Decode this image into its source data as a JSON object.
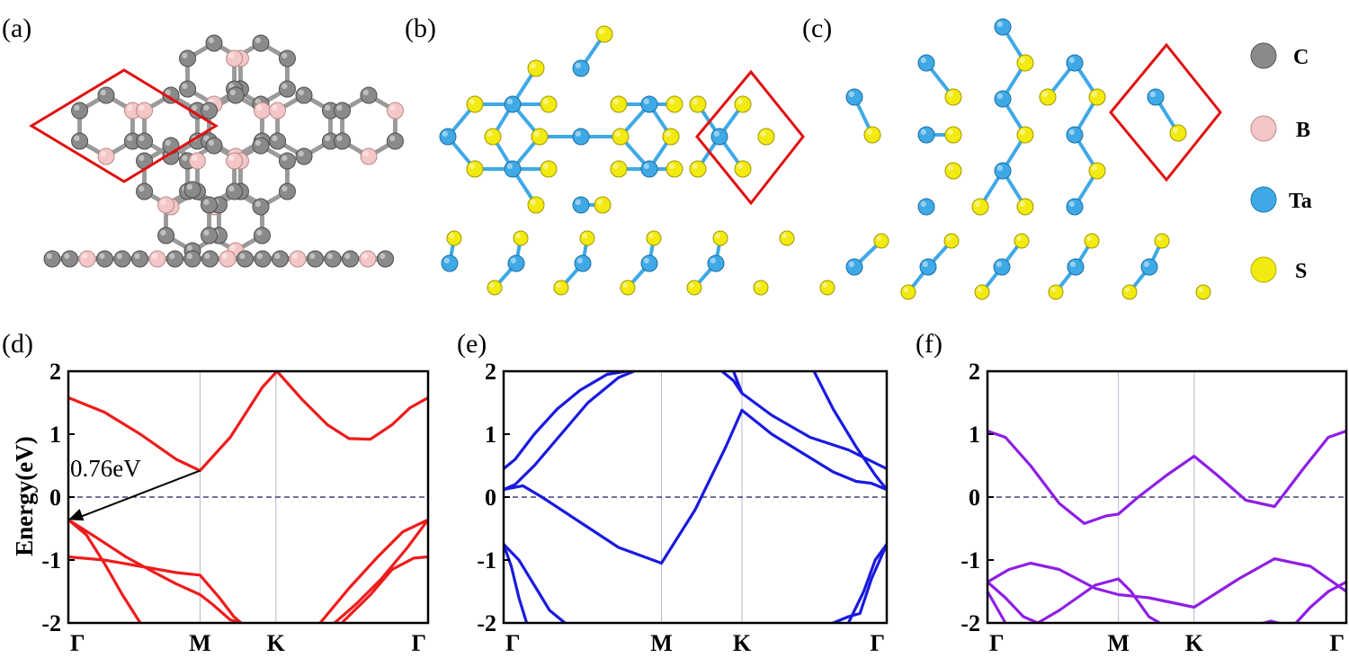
{
  "panel_labels": [
    "(a)",
    "(b)",
    "(c)",
    "(d)",
    "(e)",
    "(f)"
  ],
  "legend": [
    {
      "label": "C",
      "color": "#8a8a8a"
    },
    {
      "label": "B",
      "color": "#f4c6c6"
    },
    {
      "label": "Ta",
      "color": "#3fa9e6"
    },
    {
      "label": "S",
      "color": "#f2ea10"
    }
  ],
  "y_axis_label": "Energy(eV)",
  "annotation": "0.76eV",
  "chart_data": [
    {
      "type": "line",
      "panel": "(d)",
      "ylim": [
        -2,
        2
      ],
      "yticks": [
        "2",
        "1",
        "0",
        "-1",
        "-2"
      ],
      "kpath": [
        "Γ",
        "M",
        "K",
        "Γ"
      ],
      "kpos": [
        0,
        0.366,
        0.577,
        1
      ],
      "fermi_level": 0,
      "band_color": "#ee1c1c",
      "series": [
        {
          "x": [
            0,
            0.1,
            0.2,
            0.3,
            0.366,
            0.45,
            0.54,
            0.58
          ],
          "y": [
            1.58,
            1.35,
            1.0,
            0.6,
            0.42,
            0.95,
            1.75,
            2.0
          ]
        },
        {
          "x": [
            0.58,
            0.65,
            0.72,
            0.78,
            0.84,
            0.9,
            0.95,
            1
          ],
          "y": [
            2.0,
            1.55,
            1.15,
            0.93,
            0.92,
            1.15,
            1.42,
            1.58
          ]
        },
        {
          "x": [
            0,
            0.05,
            0.1,
            0.15,
            0.2
          ],
          "y": [
            -0.36,
            -0.6,
            -1.05,
            -1.55,
            -2.0
          ]
        },
        {
          "x": [
            0,
            0.08,
            0.16,
            0.24,
            0.3,
            0.366,
            0.4,
            0.45,
            0.48
          ],
          "y": [
            -0.36,
            -0.65,
            -0.95,
            -1.2,
            -1.38,
            -1.55,
            -1.7,
            -1.95,
            -2.0
          ]
        },
        {
          "x": [
            0,
            0.1,
            0.2,
            0.3,
            0.366,
            0.42,
            0.46,
            0.48
          ],
          "y": [
            -0.95,
            -1.0,
            -1.1,
            -1.2,
            -1.24,
            -1.6,
            -1.9,
            -2.0
          ]
        },
        {
          "x": [
            0.7,
            0.78,
            0.86,
            0.93,
            1
          ],
          "y": [
            -2.0,
            -1.45,
            -0.95,
            -0.55,
            -0.36
          ]
        },
        {
          "x": [
            0.74,
            0.8,
            0.87,
            0.94,
            1
          ],
          "y": [
            -2.0,
            -1.7,
            -1.3,
            -0.82,
            -0.36
          ]
        },
        {
          "x": [
            0.76,
            0.84,
            0.9,
            0.96,
            1
          ],
          "y": [
            -2.0,
            -1.55,
            -1.15,
            -0.97,
            -0.95
          ]
        }
      ],
      "arrow": {
        "from": [
          0.366,
          0.42
        ],
        "to": [
          0,
          -0.36
        ]
      }
    },
    {
      "type": "line",
      "panel": "(e)",
      "ylim": [
        -2,
        2
      ],
      "yticks": [
        "2",
        "1",
        "0",
        "-1",
        "-2"
      ],
      "kpath": [
        "Γ",
        "M",
        "K",
        "Γ"
      ],
      "kpos": [
        0,
        0.412,
        0.622,
        1
      ],
      "fermi_level": 0,
      "band_color": "#1a1adf",
      "series": [
        {
          "x": [
            0,
            0.03,
            0.08,
            0.15,
            0.22,
            0.3,
            0.34
          ],
          "y": [
            0.12,
            0.2,
            0.5,
            1.0,
            1.5,
            1.9,
            2.0
          ]
        },
        {
          "x": [
            0,
            0.03,
            0.08,
            0.14,
            0.2,
            0.27,
            0.32
          ],
          "y": [
            0.45,
            0.6,
            1.0,
            1.4,
            1.7,
            1.95,
            2.0
          ]
        },
        {
          "x": [
            0,
            0.05,
            0.1,
            0.2,
            0.3,
            0.412,
            0.5,
            0.58,
            0.622
          ],
          "y": [
            0.12,
            0.18,
            0.0,
            -0.4,
            -0.8,
            -1.05,
            -0.2,
            0.8,
            1.38
          ]
        },
        {
          "x": [
            0.622,
            0.7,
            0.78,
            0.86,
            0.92,
            0.96,
            1
          ],
          "y": [
            1.38,
            1.0,
            0.7,
            0.4,
            0.25,
            0.22,
            0.12
          ]
        },
        {
          "x": [
            0.6,
            0.622,
            0.7,
            0.8,
            0.9,
            0.95,
            1
          ],
          "y": [
            2.0,
            1.65,
            1.3,
            0.95,
            0.75,
            0.6,
            0.45
          ]
        },
        {
          "x": [
            0.57,
            0.6,
            0.622
          ],
          "y": [
            2.0,
            1.85,
            1.65
          ]
        },
        {
          "x": [
            0.81,
            0.86,
            0.92,
            0.97,
            1
          ],
          "y": [
            2.0,
            1.4,
            0.8,
            0.35,
            0.12
          ]
        },
        {
          "x": [
            0,
            0.02,
            0.04,
            0.06
          ],
          "y": [
            -0.75,
            -1.1,
            -1.6,
            -2.0
          ]
        },
        {
          "x": [
            0,
            0.04,
            0.08,
            0.12,
            0.16
          ],
          "y": [
            -0.75,
            -1.0,
            -1.4,
            -1.8,
            -2.0
          ]
        },
        {
          "x": [
            0.9,
            0.94,
            0.97,
            1
          ],
          "y": [
            -2.0,
            -1.5,
            -1.0,
            -0.75
          ]
        },
        {
          "x": [
            0.86,
            0.9,
            0.93,
            0.96,
            1
          ],
          "y": [
            -2.0,
            -1.9,
            -1.85,
            -1.3,
            -0.75
          ]
        }
      ]
    },
    {
      "type": "line",
      "panel": "(f)",
      "ylim": [
        -2,
        2
      ],
      "yticks": [
        "2",
        "1",
        "0",
        "-1",
        "-2"
      ],
      "kpath": [
        "Γ",
        "M",
        "K",
        "Γ"
      ],
      "kpos": [
        0,
        0.365,
        0.576,
        1
      ],
      "fermi_level": 0,
      "band_color": "#8f1fe6",
      "series": [
        {
          "x": [
            0,
            0.05,
            0.12,
            0.2,
            0.27,
            0.33,
            0.365,
            0.42,
            0.5,
            0.576,
            0.64,
            0.72,
            0.8,
            0.88,
            0.95,
            1
          ],
          "y": [
            1.05,
            0.95,
            0.5,
            -0.1,
            -0.42,
            -0.3,
            -0.27,
            0.0,
            0.35,
            0.65,
            0.35,
            -0.05,
            -0.15,
            0.45,
            0.95,
            1.05
          ]
        },
        {
          "x": [
            0,
            0.06,
            0.12,
            0.2,
            0.3,
            0.365,
            0.45,
            0.576,
            0.7,
            0.8,
            0.9,
            0.95,
            1
          ],
          "y": [
            -1.35,
            -1.15,
            -1.05,
            -1.15,
            -1.45,
            -1.55,
            -1.6,
            -1.75,
            -1.3,
            -0.98,
            -1.1,
            -1.3,
            -1.5
          ]
        },
        {
          "x": [
            0,
            0.05,
            0.1,
            0.14,
            0.2,
            0.3,
            0.365,
            0.4,
            0.45,
            0.48
          ],
          "y": [
            -1.35,
            -1.6,
            -1.9,
            -2.0,
            -1.8,
            -1.4,
            -1.3,
            -1.5,
            -1.9,
            -2.0
          ]
        },
        {
          "x": [
            0,
            0.03,
            0.05
          ],
          "y": [
            -1.5,
            -1.8,
            -2.0
          ]
        },
        {
          "x": [
            0.86,
            0.9,
            0.95,
            1
          ],
          "y": [
            -2.0,
            -1.75,
            -1.5,
            -1.35
          ]
        },
        {
          "x": [
            0.77,
            0.79,
            0.81
          ],
          "y": [
            -2.0,
            -1.97,
            -2.0
          ]
        }
      ]
    }
  ]
}
